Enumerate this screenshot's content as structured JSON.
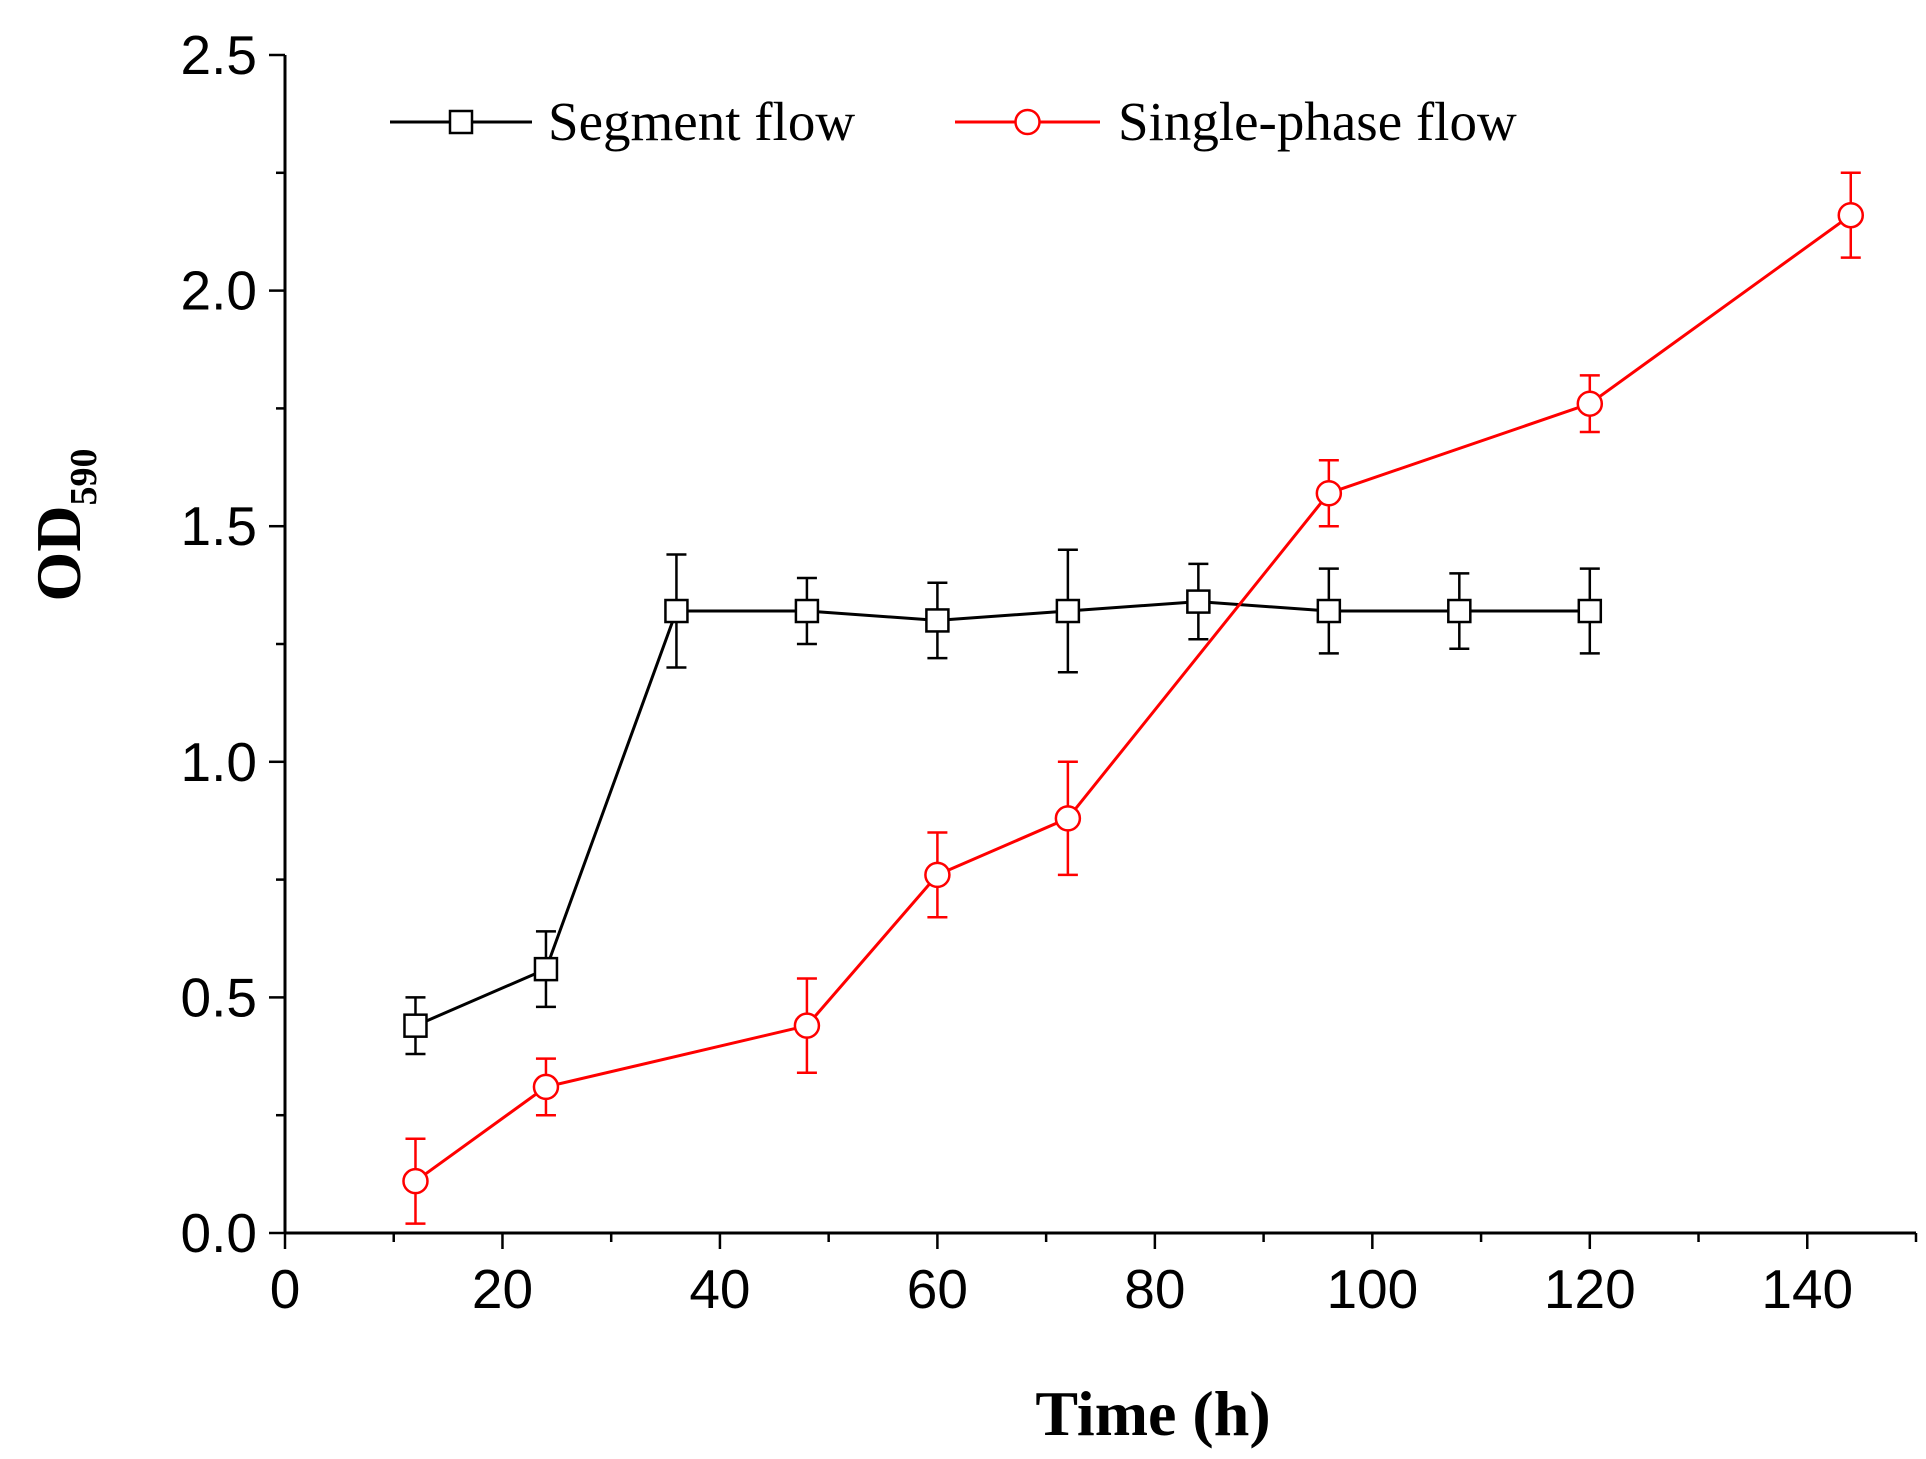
{
  "chart_data": {
    "type": "line",
    "title": "",
    "xlabel": "Time (h)",
    "ylabel": "OD",
    "ylabel_subscript": "590",
    "xlim": [
      0,
      150
    ],
    "ylim": [
      0,
      2.5
    ],
    "x_ticks": [
      0,
      20,
      40,
      60,
      80,
      100,
      120,
      140
    ],
    "x_tick_labels": [
      "0",
      "20",
      "40",
      "60",
      "80",
      "100",
      "120",
      "140"
    ],
    "y_ticks": [
      0,
      0.5,
      1.0,
      1.5,
      2.0,
      2.5
    ],
    "y_tick_labels": [
      "0.0",
      "0.5",
      "1.0",
      "1.5",
      "2.0",
      "2.5"
    ],
    "grid": false,
    "legend_position": "top",
    "series": [
      {
        "name": "Segment flow",
        "color": "#000000",
        "marker": "square",
        "x": [
          12,
          24,
          36,
          48,
          60,
          72,
          84,
          96,
          108,
          120
        ],
        "y": [
          0.44,
          0.56,
          1.32,
          1.32,
          1.3,
          1.32,
          1.34,
          1.32,
          1.32,
          1.32
        ],
        "err": [
          0.06,
          0.08,
          0.12,
          0.07,
          0.08,
          0.13,
          0.08,
          0.09,
          0.08,
          0.09
        ]
      },
      {
        "name": "Single-phase flow",
        "color": "#ff0000",
        "marker": "circle",
        "x": [
          12,
          24,
          48,
          60,
          72,
          96,
          120,
          144
        ],
        "y": [
          0.11,
          0.31,
          0.44,
          0.76,
          0.88,
          1.57,
          1.76,
          2.16
        ],
        "err": [
          0.09,
          0.06,
          0.1,
          0.09,
          0.12,
          0.07,
          0.06,
          0.09
        ]
      }
    ]
  }
}
